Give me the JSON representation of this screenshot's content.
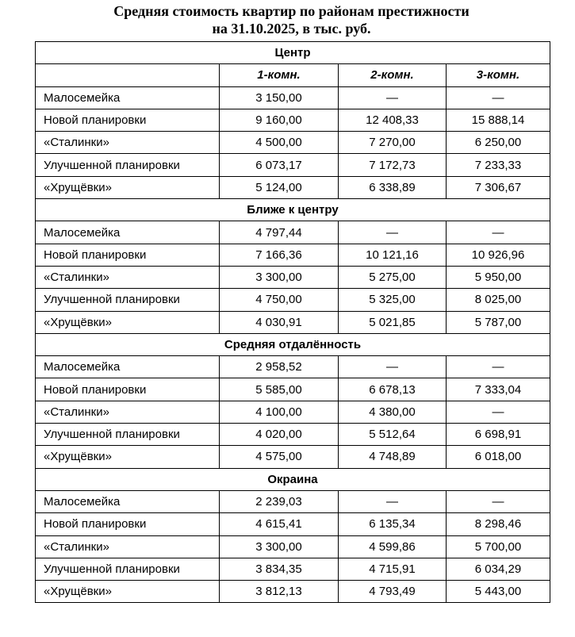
{
  "title": {
    "line1": "Средняя стоимость квартир по районам престижности",
    "line2": "на 31.10.2025, в тыс. руб."
  },
  "columns": [
    "1-комн.",
    "2-комн.",
    "3-комн."
  ],
  "sections": [
    {
      "name": "Центр",
      "rows": [
        {
          "label": "Малосемейка",
          "values": [
            "3 150,00",
            "—",
            "—"
          ]
        },
        {
          "label": "Новой планировки",
          "values": [
            "9 160,00",
            "12 408,33",
            "15 888,14"
          ]
        },
        {
          "label": "«Сталинки»",
          "values": [
            "4 500,00",
            "7 270,00",
            "6 250,00"
          ]
        },
        {
          "label": "Улучшенной планировки",
          "values": [
            "6 073,17",
            "7 172,73",
            "7 233,33"
          ]
        },
        {
          "label": "«Хрущёвки»",
          "values": [
            "5 124,00",
            "6 338,89",
            "7 306,67"
          ]
        }
      ]
    },
    {
      "name": "Ближе к центру",
      "rows": [
        {
          "label": "Малосемейка",
          "values": [
            "4 797,44",
            "—",
            "—"
          ]
        },
        {
          "label": "Новой планировки",
          "values": [
            "7 166,36",
            "10 121,16",
            "10 926,96"
          ]
        },
        {
          "label": "«Сталинки»",
          "values": [
            "3 300,00",
            "5 275,00",
            "5 950,00"
          ]
        },
        {
          "label": "Улучшенной планировки",
          "values": [
            "4 750,00",
            "5 325,00",
            "8 025,00"
          ]
        },
        {
          "label": "«Хрущёвки»",
          "values": [
            "4 030,91",
            "5 021,85",
            "5 787,00"
          ]
        }
      ]
    },
    {
      "name": "Средняя отдалённость",
      "rows": [
        {
          "label": "Малосемейка",
          "values": [
            "2 958,52",
            "—",
            "—"
          ]
        },
        {
          "label": "Новой планировки",
          "values": [
            "5 585,00",
            "6 678,13",
            "7 333,04"
          ]
        },
        {
          "label": "«Сталинки»",
          "values": [
            "4 100,00",
            "4 380,00",
            "—"
          ]
        },
        {
          "label": "Улучшенной планировки",
          "values": [
            "4 020,00",
            "5 512,64",
            "6 698,91"
          ]
        },
        {
          "label": "«Хрущёвки»",
          "values": [
            "4 575,00",
            "4 748,89",
            "6 018,00"
          ]
        }
      ]
    },
    {
      "name": "Окраина",
      "rows": [
        {
          "label": "Малосемейка",
          "values": [
            "2 239,03",
            "—",
            "—"
          ]
        },
        {
          "label": "Новой планировки",
          "values": [
            "4 615,41",
            "6 135,34",
            "8 298,46"
          ]
        },
        {
          "label": "«Сталинки»",
          "values": [
            "3 300,00",
            "4 599,86",
            "5 700,00"
          ]
        },
        {
          "label": "Улучшенной планировки",
          "values": [
            "3 834,35",
            "4 715,91",
            "6 034,29"
          ]
        },
        {
          "label": "«Хрущёвки»",
          "values": [
            "3 812,13",
            "4 793,49",
            "5 443,00"
          ]
        }
      ]
    }
  ]
}
